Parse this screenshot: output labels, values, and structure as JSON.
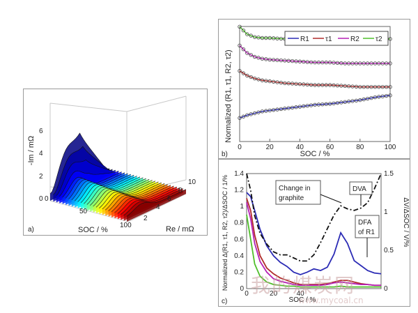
{
  "panels": {
    "a": {
      "label": "a)",
      "xlabel": "SOC / %",
      "ylabel": "Re / mΩ",
      "zlabel": "-Im / mΩ",
      "x_ticks": [
        "0",
        "50",
        "100"
      ],
      "y_ticks": [
        "2",
        "4",
        "6",
        "8",
        "10"
      ],
      "z_ticks": [
        "0",
        "2",
        "4",
        "6"
      ]
    },
    "b": {
      "label": "b)"
    },
    "c": {
      "label": "c)",
      "annotations": {
        "graphite": "Change in graphite",
        "dva": "DVA",
        "dfa": "DFA of R1"
      }
    }
  },
  "watermark": {
    "text": "我的煤炭网",
    "url": "www.mycoal.cn"
  },
  "colors": {
    "R1": "#2b2bb5",
    "tau1": "#b02a2a",
    "R2": "#b51fb5",
    "tau2": "#4fbf2a",
    "dva": "#111111"
  },
  "chart_data": [
    {
      "type": "surface",
      "title": "",
      "xlabel": "SOC / %",
      "ylabel": "Re / mΩ",
      "zlabel": "-Im / mΩ",
      "xlim": [
        0,
        100
      ],
      "ylim": [
        1,
        11
      ],
      "zlim": [
        0,
        6
      ],
      "colormap": "jet"
    },
    {
      "type": "line",
      "xlabel": "SOC / %",
      "ylabel": "Normalized (R1, τ1, R2, τ2)",
      "xlim": [
        0,
        100
      ],
      "x_ticks": [
        0,
        20,
        40,
        60,
        80,
        100
      ],
      "legend_position": "top-right",
      "x": [
        0,
        5,
        10,
        15,
        20,
        30,
        40,
        50,
        60,
        70,
        80,
        90,
        100
      ],
      "series": [
        {
          "name": "R1",
          "values": [
            0.25,
            0.28,
            0.3,
            0.32,
            0.33,
            0.35,
            0.37,
            0.39,
            0.4,
            0.42,
            0.44,
            0.47,
            0.49
          ]
        },
        {
          "name": "τ1",
          "values": [
            0.75,
            0.7,
            0.67,
            0.65,
            0.64,
            0.62,
            0.61,
            0.6,
            0.6,
            0.59,
            0.58,
            0.58,
            0.58
          ]
        },
        {
          "name": "R2",
          "values": [
            1.02,
            0.94,
            0.9,
            0.88,
            0.87,
            0.86,
            0.85,
            0.84,
            0.84,
            0.83,
            0.83,
            0.83,
            0.83
          ]
        },
        {
          "name": "τ2",
          "values": [
            1.22,
            1.14,
            1.11,
            1.1,
            1.1,
            1.09,
            1.09,
            1.09,
            1.09,
            1.09,
            1.09,
            1.09,
            1.09
          ]
        }
      ]
    },
    {
      "type": "line",
      "xlabel": "SOC / %",
      "ylabel": "Normalized Δ(R1, τ1, R2, τ2)/ΔSOC / 1/%",
      "y2label": "ΔV/ΔSOC / V/%",
      "xlim": [
        0,
        100
      ],
      "ylim": [
        0,
        1.4
      ],
      "y2lim": [
        0,
        1.5
      ],
      "x_ticks": [
        0,
        20,
        40
      ],
      "y_ticks": [
        0,
        0.2,
        0.4,
        0.6,
        0.8,
        1,
        1.2,
        1.4
      ],
      "y2_ticks": [
        0,
        0.5,
        1,
        1.5
      ],
      "x": [
        0,
        3,
        6,
        10,
        15,
        20,
        25,
        30,
        35,
        40,
        45,
        50,
        55,
        60,
        65,
        70,
        75,
        80,
        85,
        90,
        95,
        100
      ],
      "series": [
        {
          "name": "R1",
          "values": [
            1.17,
            1.12,
            0.95,
            0.72,
            0.52,
            0.4,
            0.32,
            0.27,
            0.2,
            0.17,
            0.2,
            0.24,
            0.22,
            0.26,
            0.42,
            0.68,
            0.55,
            0.34,
            0.28,
            0.22,
            0.19,
            0.18
          ]
        },
        {
          "name": "τ1",
          "values": [
            1.1,
            0.95,
            0.65,
            0.4,
            0.25,
            0.18,
            0.13,
            0.1,
            0.07,
            0.05,
            0.05,
            0.05,
            0.05,
            0.06,
            0.08,
            0.1,
            0.1,
            0.08,
            0.06,
            0.05,
            0.04,
            0.04
          ]
        },
        {
          "name": "R2",
          "values": [
            1.05,
            0.85,
            0.55,
            0.33,
            0.2,
            0.12,
            0.09,
            0.07,
            0.05,
            0.04,
            0.04,
            0.04,
            0.04,
            0.05,
            0.07,
            0.08,
            0.07,
            0.06,
            0.05,
            0.05,
            0.04,
            0.04
          ]
        },
        {
          "name": "τ2",
          "values": [
            0.9,
            0.6,
            0.3,
            0.15,
            0.08,
            0.05,
            0.04,
            0.03,
            0.03,
            0.02,
            0.02,
            0.02,
            0.02,
            0.02,
            0.02,
            0.03,
            0.02,
            0.02,
            0.02,
            0.02,
            0.02,
            0.02
          ]
        },
        {
          "name": "DVA",
          "axis": "right",
          "values": [
            1.5,
            1.28,
            0.95,
            0.72,
            0.58,
            0.48,
            0.44,
            0.44,
            0.4,
            0.36,
            0.36,
            0.44,
            0.6,
            0.78,
            0.96,
            1.08,
            1.04,
            1.02,
            1.05,
            1.12,
            1.3,
            1.55
          ]
        }
      ]
    }
  ]
}
